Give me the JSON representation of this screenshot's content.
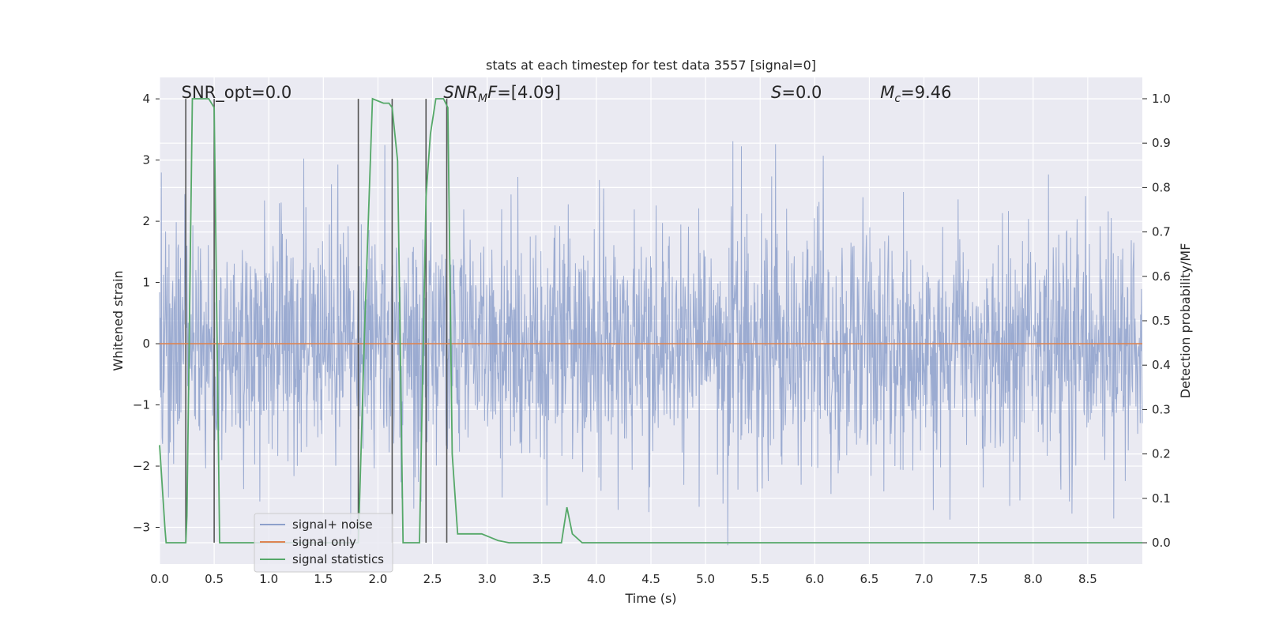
{
  "chart_data": {
    "type": "line",
    "title": "stats at each timestep for test data 3557 [signal=0]",
    "xlabel": "Time (s)",
    "ylabel": "Whitened strain",
    "ylabel_right": "Detection probability/MF",
    "xlim": [
      0,
      9.0
    ],
    "ylim": [
      -3.6,
      4.35
    ],
    "ylim_right": [
      -0.048,
      1.048
    ],
    "x_ticks": [
      0.0,
      0.5,
      1.0,
      1.5,
      2.0,
      2.5,
      3.0,
      3.5,
      4.0,
      4.5,
      5.0,
      5.5,
      6.0,
      6.5,
      7.0,
      7.5,
      8.0,
      8.5
    ],
    "x_tick_labels": [
      "0.0",
      "0.5",
      "1.0",
      "1.5",
      "2.0",
      "2.5",
      "3.0",
      "3.5",
      "4.0",
      "4.5",
      "5.0",
      "5.5",
      "6.0",
      "6.5",
      "7.0",
      "7.5",
      "8.0",
      "8.5"
    ],
    "y_ticks": [
      -3,
      -2,
      -1,
      0,
      1,
      2,
      3,
      4
    ],
    "y_tick_labels": [
      "−3",
      "−2",
      "−1",
      "0",
      "1",
      "2",
      "3",
      "4"
    ],
    "y_right_ticks": [
      0.0,
      0.1,
      0.2,
      0.3,
      0.4,
      0.5,
      0.6,
      0.7,
      0.8,
      0.9,
      1.0
    ],
    "y_right_tick_labels": [
      "0.0",
      "0.1",
      "0.2",
      "0.3",
      "0.4",
      "0.5",
      "0.6",
      "0.7",
      "0.8",
      "0.9",
      "1.0"
    ],
    "grid": true,
    "legend_position": "lower-left",
    "annotations": [
      {
        "text": "SNR_opt=0.0",
        "x": 0.2
      },
      {
        "text": "SNR_MF=[4.09]",
        "x": 2.6
      },
      {
        "text": "S=0.0",
        "x": 5.6
      },
      {
        "text": "M_c=9.46",
        "x": 6.6
      }
    ],
    "series": [
      {
        "name": "signal+ noise",
        "color": "#8da0cb",
        "kind": "noise",
        "sample_rate_hz": 256,
        "duration_s": 9.0,
        "envelope_abs_max": 3.7,
        "note_values": "whitened noise samples, approximately Gaussian with std 1"
      },
      {
        "name": "signal only",
        "color": "#dd8452",
        "x": [
          0.0,
          9.0
        ],
        "y": [
          0.0,
          0.0
        ]
      },
      {
        "name": "signal statistics",
        "color": "#55a868",
        "axis": "right",
        "x": [
          0.0,
          0.05,
          0.06,
          0.24,
          0.25,
          0.3,
          0.45,
          0.5,
          0.55,
          1.82,
          1.88,
          1.95,
          2.05,
          2.1,
          2.13,
          2.18,
          2.23,
          2.38,
          2.44,
          2.48,
          2.53,
          2.6,
          2.64,
          2.68,
          2.73,
          2.78,
          2.85,
          2.95,
          3.05,
          3.1,
          3.2,
          3.68,
          3.73,
          3.78,
          3.87,
          3.93,
          9.0
        ],
        "y": [
          0.22,
          0.03,
          0.0,
          0.0,
          0.06,
          1.0,
          1.0,
          0.98,
          0.0,
          0.0,
          0.5,
          1.0,
          0.99,
          0.99,
          0.98,
          0.86,
          0.0,
          0.0,
          0.78,
          0.92,
          1.0,
          1.0,
          0.98,
          0.2,
          0.02,
          0.02,
          0.02,
          0.02,
          0.01,
          0.005,
          0.0,
          0.0,
          0.08,
          0.02,
          0.0,
          0.0,
          0.0
        ]
      },
      {
        "name": "",
        "color": "#555555",
        "kind": "vlines",
        "x": [
          0.24,
          0.5,
          1.82,
          2.13,
          2.44,
          2.63
        ]
      }
    ]
  }
}
